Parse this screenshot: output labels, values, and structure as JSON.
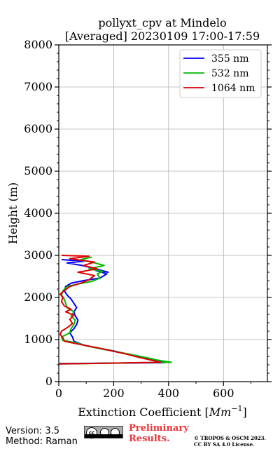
{
  "chart_data": {
    "type": "line",
    "title": "pollyxt_cpv at Mindelo",
    "subtitle": "[Averaged] 20230109 17:00-17:59",
    "xlabel": "Extinction Coefficient [",
    "xlabel_unit": "Mm",
    "xlabel_exp": "−1",
    "xlabel_close": "]",
    "ylabel": "Height (m)",
    "xlim": [
      0,
      760
    ],
    "ylim": [
      0,
      8000
    ],
    "xticks": [
      0,
      200,
      400,
      600
    ],
    "yticks": [
      0,
      1000,
      2000,
      3000,
      4000,
      5000,
      6000,
      7000,
      8000
    ],
    "grid": true,
    "legend_position": "top-right",
    "series": [
      {
        "name": "355 nm",
        "color": "#0000ff",
        "points": [
          [
            0,
            430
          ],
          [
            385,
            450
          ],
          [
            340,
            520
          ],
          [
            300,
            580
          ],
          [
            245,
            660
          ],
          [
            200,
            730
          ],
          [
            150,
            790
          ],
          [
            90,
            870
          ],
          [
            55,
            960
          ],
          [
            50,
            1060
          ],
          [
            40,
            1160
          ],
          [
            55,
            1260
          ],
          [
            65,
            1360
          ],
          [
            70,
            1460
          ],
          [
            60,
            1560
          ],
          [
            55,
            1660
          ],
          [
            65,
            1760
          ],
          [
            55,
            1860
          ],
          [
            45,
            1960
          ],
          [
            30,
            2060
          ],
          [
            20,
            2160
          ],
          [
            25,
            2260
          ],
          [
            45,
            2340
          ],
          [
            90,
            2400
          ],
          [
            150,
            2460
          ],
          [
            175,
            2560
          ],
          [
            135,
            2640
          ],
          [
            180,
            2600
          ],
          [
            110,
            2720
          ],
          [
            85,
            2760
          ],
          [
            30,
            2820
          ],
          [
            90,
            2860
          ],
          [
            10,
            2900
          ]
        ]
      },
      {
        "name": "532 nm",
        "color": "#00bb00",
        "points": [
          [
            0,
            420
          ],
          [
            410,
            460
          ],
          [
            360,
            510
          ],
          [
            320,
            570
          ],
          [
            260,
            650
          ],
          [
            210,
            710
          ],
          [
            160,
            770
          ],
          [
            100,
            850
          ],
          [
            60,
            930
          ],
          [
            15,
            980
          ],
          [
            10,
            1060
          ],
          [
            40,
            1160
          ],
          [
            45,
            1260
          ],
          [
            55,
            1360
          ],
          [
            60,
            1460
          ],
          [
            45,
            1560
          ],
          [
            55,
            1660
          ],
          [
            30,
            1760
          ],
          [
            25,
            1860
          ],
          [
            20,
            1960
          ],
          [
            10,
            2060
          ],
          [
            15,
            2160
          ],
          [
            30,
            2260
          ],
          [
            70,
            2320
          ],
          [
            120,
            2380
          ],
          [
            150,
            2460
          ],
          [
            140,
            2560
          ],
          [
            160,
            2620
          ],
          [
            110,
            2680
          ],
          [
            165,
            2760
          ],
          [
            120,
            2840
          ],
          [
            80,
            2900
          ],
          [
            120,
            2960
          ]
        ]
      },
      {
        "name": "1064 nm",
        "color": "#dd0000",
        "points": [
          [
            0,
            420
          ],
          [
            370,
            460
          ],
          [
            330,
            520
          ],
          [
            290,
            580
          ],
          [
            250,
            650
          ],
          [
            200,
            720
          ],
          [
            160,
            780
          ],
          [
            80,
            880
          ],
          [
            20,
            960
          ],
          [
            15,
            1040
          ],
          [
            5,
            1120
          ],
          [
            10,
            1200
          ],
          [
            30,
            1280
          ],
          [
            50,
            1380
          ],
          [
            40,
            1480
          ],
          [
            55,
            1580
          ],
          [
            25,
            1660
          ],
          [
            45,
            1720
          ],
          [
            20,
            1800
          ],
          [
            10,
            1900
          ],
          [
            15,
            2000
          ],
          [
            5,
            2080
          ],
          [
            20,
            2160
          ],
          [
            40,
            2260
          ],
          [
            80,
            2340
          ],
          [
            110,
            2420
          ],
          [
            130,
            2520
          ],
          [
            70,
            2600
          ],
          [
            140,
            2680
          ],
          [
            90,
            2760
          ],
          [
            130,
            2840
          ],
          [
            40,
            2920
          ],
          [
            110,
            2980
          ],
          [
            10,
            3000
          ]
        ]
      }
    ]
  },
  "footer": {
    "version": "Version: 3.5",
    "method": "Method: Raman",
    "preliminary": [
      "Preliminary",
      "Results."
    ],
    "copyright": [
      "© TROPOS & OSCM 2023.",
      "CC BY SA 4.0 License."
    ]
  }
}
